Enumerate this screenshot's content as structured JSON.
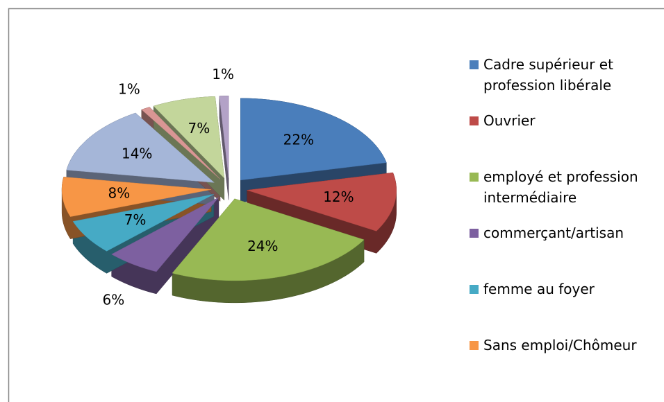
{
  "chart_data": {
    "type": "pie",
    "categories": [
      "Cadre supérieur et profession libérale",
      "Ouvrier",
      "employé et profession intermédiaire",
      "commerçant/artisan",
      "femme au foyer",
      "Sans emploi/Chômeur",
      null,
      null,
      null,
      null
    ],
    "values": [
      22,
      12,
      24,
      6,
      7,
      8,
      14,
      1,
      7,
      1
    ],
    "value_labels": [
      "22%",
      "12%",
      "24%",
      "6%",
      "7%",
      "8%",
      "14%",
      "1%",
      "7%",
      "1%"
    ],
    "colors": [
      "#4a7ebb",
      "#be4b48",
      "#98b954",
      "#7d60a0",
      "#46aac5",
      "#f79646",
      "#a5b6d8",
      "#d99694",
      "#c3d69b",
      "#b3a2c7"
    ],
    "legend": "right"
  }
}
